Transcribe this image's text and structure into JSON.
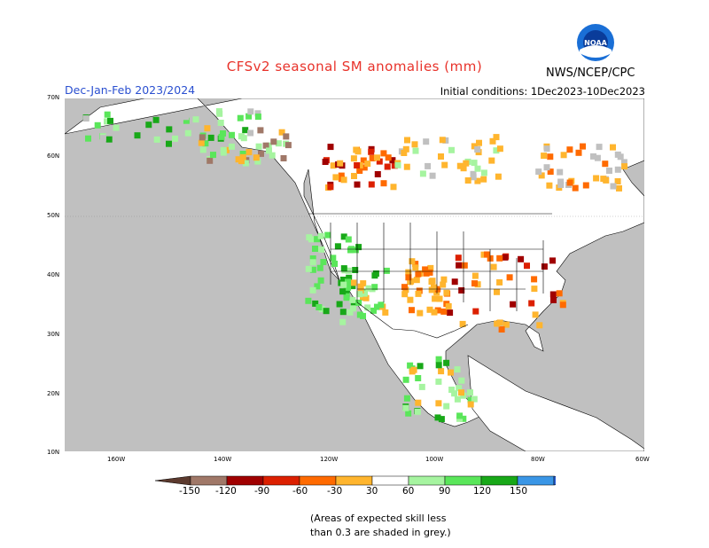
{
  "title": "CFSv2 seasonal SM anomalies (mm)",
  "season": "Dec-Jan-Feb 2023/2024",
  "initial_conditions": "Initial conditions: 1Dec2023-10Dec2023",
  "agency": "NWS/NCEP/CPC",
  "logo_text": "NOAA",
  "lat_labels": [
    "70N",
    "60N",
    "50N",
    "40N",
    "30N",
    "20N",
    "10N"
  ],
  "lon_labels": [
    "160W",
    "140W",
    "120W",
    "100W",
    "80W",
    "60W"
  ],
  "colorbar": {
    "labels": [
      "-150",
      "-120",
      "-90",
      "-60",
      "-30",
      "30",
      "60",
      "90",
      "120",
      "150"
    ],
    "colors": [
      "#5c3a2e",
      "#a07868",
      "#a00000",
      "#dc2000",
      "#ff6a00",
      "#ffb52e",
      "#ffffff",
      "#a6f4a0",
      "#5ae65a",
      "#18a818",
      "#3a96e6",
      "#2a60d8"
    ]
  },
  "note_line1": "(Areas of expected skill less",
  "note_line2": "than 0.3 are shaded in grey.)",
  "colors": {
    "ocean": "#c0c0c0",
    "land": "#ffffff",
    "title": "#e8322a",
    "season": "#2a4fd0"
  }
}
